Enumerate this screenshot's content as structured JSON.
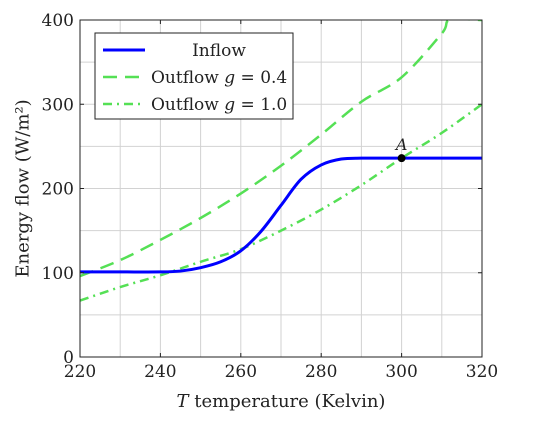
{
  "chart_data": {
    "type": "line",
    "xlabel": "T temperature (Kelvin)",
    "xlabel_var": "T",
    "xlabel_rest": " temperature (Kelvin)",
    "ylabel": "Energy flow (W/m²)",
    "xlim": [
      220,
      320
    ],
    "ylim": [
      0,
      400
    ],
    "x_ticks": [
      220,
      240,
      260,
      280,
      300,
      320
    ],
    "y_ticks": [
      0,
      100,
      200,
      300,
      400
    ],
    "x_tick_labels": [
      "220",
      "240",
      "260",
      "280",
      "300",
      "320"
    ],
    "y_tick_labels": [
      "0",
      "100",
      "200",
      "300",
      "400"
    ],
    "grid": true,
    "legend_position": "top-left",
    "series": [
      {
        "name": "Inflow",
        "legend_prefix": "Inflow",
        "legend_var": "",
        "legend_value": "",
        "color": "#0000ff",
        "style": "solid",
        "x": [
          220,
          230,
          240,
          245,
          250,
          255,
          260,
          265,
          270,
          275,
          280,
          285,
          290,
          295,
          300,
          310,
          320
        ],
        "y": [
          101,
          101,
          101,
          102,
          106,
          113,
          126,
          149,
          180,
          211,
          228,
          235,
          236,
          236,
          236,
          236,
          236
        ]
      },
      {
        "name": "Outflow g = 0.4",
        "legend_prefix": "Outflow ",
        "legend_var": "g",
        "legend_value": " = 0.4",
        "color": "#55e055",
        "style": "dashed",
        "x": [
          220,
          230,
          240,
          250,
          260,
          270,
          280,
          290,
          300,
          310,
          312,
          320
        ],
        "y": [
          96,
          115,
          139,
          165,
          194,
          227,
          264,
          303,
          332,
          384,
          400,
          400
        ]
      },
      {
        "name": "Outflow g = 1.0",
        "legend_prefix": "Outflow ",
        "legend_var": "g",
        "legend_value": " = 1.0",
        "color": "#55e055",
        "style": "dashdot",
        "x": [
          220,
          230,
          240,
          250,
          260,
          270,
          280,
          290,
          300,
          310,
          320
        ],
        "y": [
          67,
          83,
          97,
          113,
          128,
          150,
          175,
          204,
          236,
          266,
          300
        ]
      }
    ],
    "annotations": [
      {
        "label": "A",
        "x": 300,
        "y": 236
      }
    ]
  }
}
